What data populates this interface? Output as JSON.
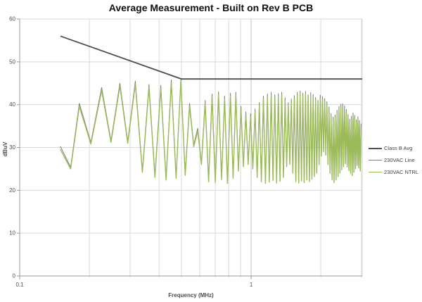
{
  "chart": {
    "kind": "EMC conducted emissions average measurement plot",
    "background": "#ffffff",
    "gridline_color": "#d9d9d9",
    "axis_line_color": "#9a9a9a",
    "tick_label_color": "#4d4d4d"
  },
  "chart_data": {
    "type": "line",
    "title": "Average Measurement - Built on Rev B PCB",
    "xlabel": "Frequency (MHz)",
    "ylabel": "dBuV",
    "x_scale": "log",
    "xlim": [
      0.1,
      3.02
    ],
    "ylim": [
      0,
      60
    ],
    "grid": true,
    "legend_position": "right",
    "yticks": [
      0,
      10,
      20,
      30,
      40,
      50,
      60
    ],
    "xticks_labeled": [
      {
        "value": 0.1,
        "label": "0.1"
      },
      {
        "value": 1,
        "label": "1"
      }
    ],
    "x_minor_gridlines": [
      0.2,
      0.3,
      0.4,
      0.5,
      0.6,
      0.7,
      0.8,
      0.9,
      2,
      3
    ],
    "x_major_gridlines": [
      1
    ],
    "x": [
      0.15,
      0.166,
      0.181,
      0.203,
      0.226,
      0.248,
      0.271,
      0.293,
      0.316,
      0.339,
      0.362,
      0.384,
      0.407,
      0.429,
      0.452,
      0.474,
      0.497,
      0.519,
      0.542,
      0.565,
      0.588,
      0.61,
      0.633,
      0.655,
      0.678,
      0.7,
      0.723,
      0.745,
      0.768,
      0.79,
      0.814,
      0.836,
      0.859,
      0.881,
      0.904,
      0.926,
      0.949,
      0.971,
      0.995,
      1.017,
      1.04,
      1.062,
      1.085,
      1.107,
      1.13,
      1.153,
      1.176,
      1.198,
      1.221,
      1.243,
      1.266,
      1.288,
      1.311,
      1.333,
      1.356,
      1.379,
      1.402,
      1.424,
      1.447,
      1.469,
      1.492,
      1.514,
      1.537,
      1.56,
      1.583,
      1.605,
      1.628,
      1.65,
      1.673,
      1.695,
      1.718,
      1.74,
      1.763,
      1.786,
      1.809,
      1.831,
      1.854,
      1.876,
      1.899,
      1.921,
      1.944,
      1.967,
      1.99,
      2.012,
      2.035,
      2.057,
      2.08,
      2.102,
      2.125,
      2.148,
      2.171,
      2.193,
      2.216,
      2.238,
      2.261,
      2.283,
      2.306,
      2.328,
      2.351,
      2.374,
      2.397,
      2.419,
      2.442,
      2.464,
      2.487,
      2.509,
      2.532,
      2.555,
      2.578,
      2.6,
      2.623,
      2.645,
      2.668,
      2.69,
      2.713,
      2.735,
      2.758,
      2.781,
      2.804,
      2.826,
      2.849,
      2.871,
      2.894,
      2.916,
      2.939,
      2.962,
      2.985
    ],
    "series": [
      {
        "name": "Class B Avg",
        "color": "#4f4f4f",
        "width": 1.8,
        "points": [
          [
            0.15,
            56.0
          ],
          [
            0.5,
            46.0
          ],
          [
            3.02,
            46.0
          ]
        ]
      },
      {
        "name": "230VAC Line",
        "color": "#7f7f7f",
        "width": 1.0,
        "uses_shared_x": true,
        "values": [
          30.2,
          25.4,
          40.3,
          31.2,
          44.0,
          31.6,
          45.0,
          31.4,
          45.5,
          24.6,
          44.7,
          23.4,
          44.5,
          22.8,
          45.8,
          23.2,
          46.0,
          23.9,
          40.3,
          30.6,
          34.5,
          26.4,
          41.0,
          22.4,
          42.5,
          22.2,
          43.0,
          22.9,
          42.0,
          22.0,
          42.7,
          23.2,
          42.9,
          24.9,
          39.6,
          25.9,
          38.3,
          26.4,
          37.9,
          25.4,
          39.0,
          23.4,
          40.5,
          22.4,
          42.0,
          22.0,
          42.5,
          22.3,
          42.9,
          22.7,
          42.3,
          22.1,
          42.6,
          22.5,
          42.9,
          23.4,
          41.6,
          25.9,
          40.5,
          26.4,
          41.3,
          24.4,
          42.1,
          22.4,
          42.9,
          22.1,
          43.2,
          22.6,
          42.7,
          22.2,
          43.1,
          22.8,
          42.3,
          22.4,
          42.8,
          23.0,
          42.4,
          23.6,
          41.7,
          24.4,
          41.0,
          26.4,
          42.2,
          28.4,
          41.9,
          29.4,
          41.4,
          28.6,
          40.7,
          26.4,
          39.5,
          24.4,
          37.9,
          22.9,
          37.1,
          22.2,
          37.6,
          22.8,
          38.7,
          23.6,
          39.6,
          24.4,
          40.1,
          25.2,
          40.2,
          25.9,
          39.7,
          26.6,
          38.9,
          25.8,
          37.7,
          25.0,
          36.6,
          24.4,
          37.3,
          23.8,
          38.1,
          24.6,
          37.5,
          25.4,
          36.5,
          26.2,
          37.2,
          25.6,
          36.3,
          24.9,
          35.5
        ]
      },
      {
        "name": "230VAC NTRL",
        "color": "#9bbb59",
        "width": 1.4,
        "uses_shared_x": true,
        "values": [
          29.5,
          25.0,
          39.6,
          30.8,
          43.3,
          31.2,
          44.3,
          31.0,
          44.8,
          24.2,
          44.0,
          23.0,
          43.8,
          22.4,
          45.1,
          22.8,
          45.6,
          23.5,
          39.6,
          30.2,
          33.8,
          26.0,
          40.3,
          22.0,
          41.8,
          21.8,
          42.3,
          22.5,
          41.3,
          21.6,
          42.0,
          22.8,
          42.2,
          24.5,
          38.9,
          25.5,
          37.6,
          26.0,
          37.2,
          25.0,
          38.3,
          23.0,
          39.8,
          22.0,
          41.3,
          21.6,
          41.8,
          21.9,
          42.2,
          22.3,
          41.6,
          21.7,
          41.9,
          22.1,
          42.2,
          23.0,
          40.9,
          25.5,
          39.8,
          26.0,
          40.6,
          24.0,
          41.4,
          22.0,
          42.2,
          21.7,
          42.5,
          22.2,
          42.0,
          21.8,
          42.4,
          22.4,
          41.6,
          22.0,
          42.1,
          22.6,
          41.7,
          23.2,
          41.0,
          24.0,
          40.3,
          26.0,
          41.5,
          28.0,
          41.2,
          29.0,
          40.7,
          28.2,
          40.0,
          26.0,
          38.8,
          24.0,
          37.2,
          22.5,
          36.4,
          21.8,
          36.9,
          22.4,
          38.0,
          23.2,
          38.9,
          24.0,
          39.4,
          24.8,
          39.5,
          25.5,
          39.0,
          26.2,
          38.2,
          25.4,
          37.0,
          24.6,
          35.9,
          24.0,
          36.6,
          23.4,
          37.4,
          24.2,
          36.8,
          25.0,
          35.8,
          25.8,
          36.5,
          25.2,
          35.6,
          24.5,
          34.8
        ]
      }
    ]
  }
}
